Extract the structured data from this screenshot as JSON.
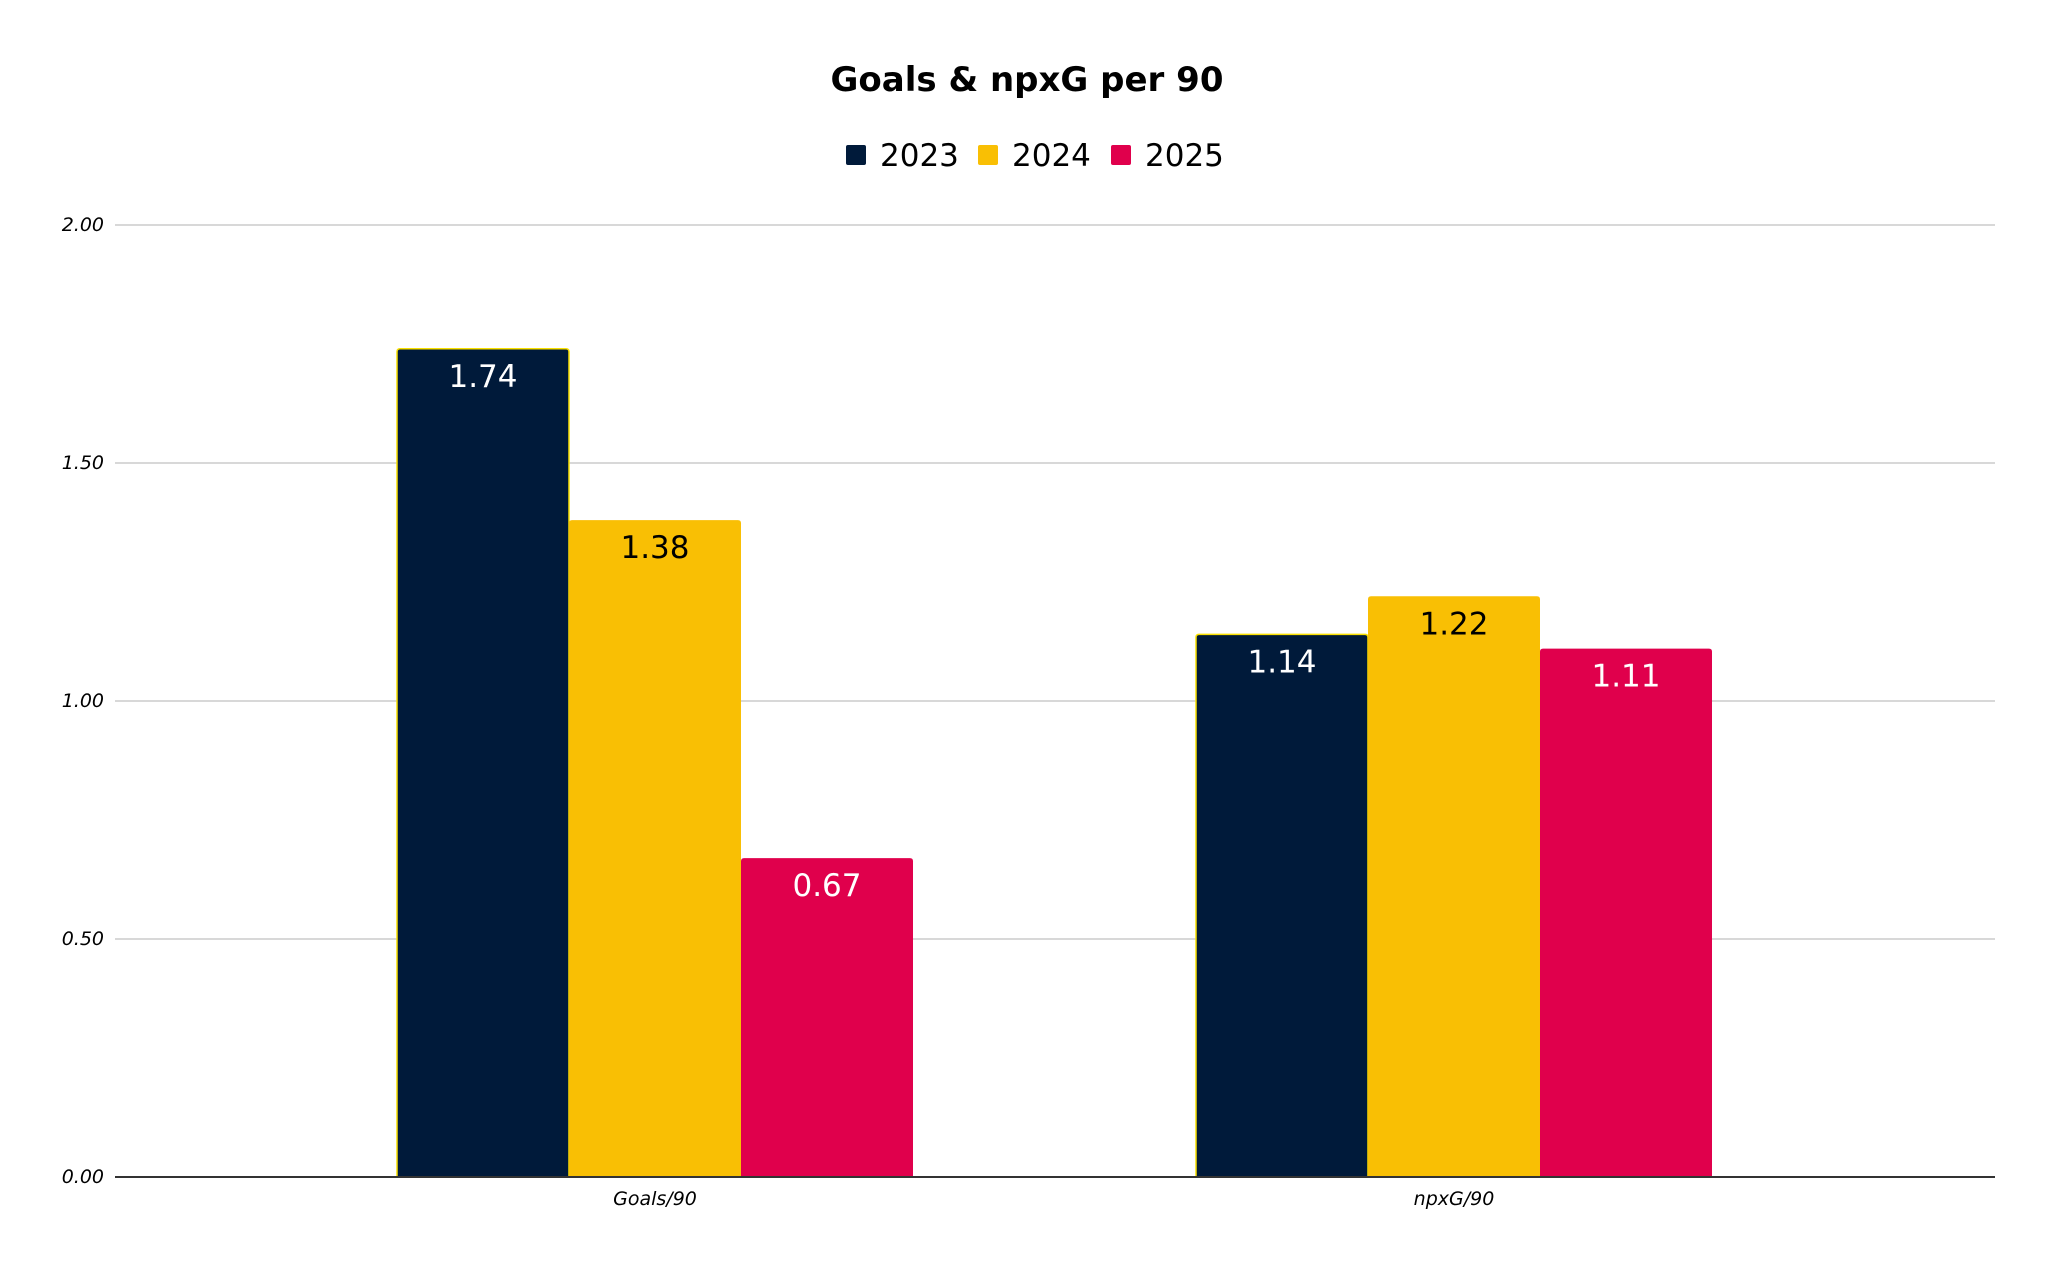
{
  "chart_data": {
    "type": "bar",
    "title": "Goals & npxG per 90",
    "categories": [
      "Goals/90",
      "npxG/90"
    ],
    "series": [
      {
        "name": "2023",
        "values": [
          1.74,
          1.14
        ],
        "color": "#001a3a",
        "label_color": "#ffffff",
        "labels": [
          "1.74",
          "1.14"
        ]
      },
      {
        "name": "2024",
        "values": [
          1.38,
          1.22
        ],
        "color": "#f9bf04",
        "label_color": "#000000",
        "labels": [
          "1.38",
          "1.22"
        ]
      },
      {
        "name": "2025",
        "values": [
          0.67,
          1.11
        ],
        "color": "#e0004c",
        "label_color": "#ffffff",
        "labels": [
          "0.67",
          "1.11"
        ]
      }
    ],
    "ylim": [
      0,
      2
    ],
    "yticks": [
      "0.00",
      "0.50",
      "1.00",
      "1.50",
      "2.00"
    ],
    "ytick_values": [
      0,
      0.5,
      1,
      1.5,
      2
    ],
    "grid": true,
    "legend_position": "top-center",
    "bar_outline_color": "#f9e000"
  }
}
